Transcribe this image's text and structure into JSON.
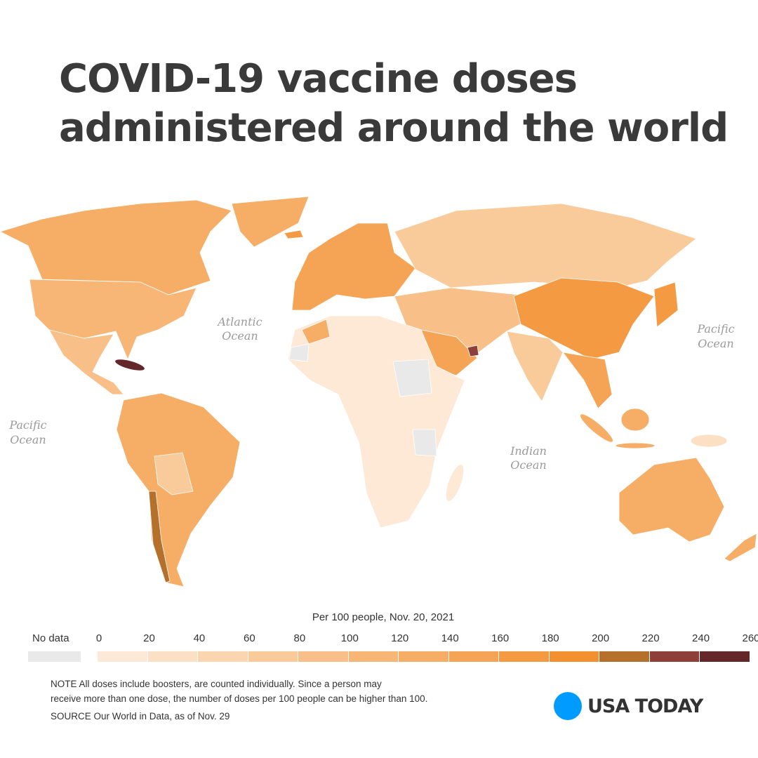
{
  "title": "COVID-19 vaccine doses administered around the world",
  "map": {
    "ocean_labels": [
      {
        "line1": "Atlantic",
        "line2": "Ocean"
      },
      {
        "line1": "Pacific",
        "line2": "Ocean"
      },
      {
        "line1": "Pacific",
        "line2": "Ocean"
      },
      {
        "line1": "Indian",
        "line2": "Ocean"
      }
    ]
  },
  "legend": {
    "title": "Per 100 people, Nov. 20, 2021",
    "no_data_label": "No data",
    "no_data_color": "#e9e9e9",
    "ticks": [
      "0",
      "20",
      "40",
      "60",
      "80",
      "100",
      "120",
      "140",
      "160",
      "180",
      "200",
      "220",
      "240",
      "260"
    ],
    "colors": [
      "#fde9d6",
      "#fce0c4",
      "#fbd5af",
      "#f9cb9b",
      "#f8c088",
      "#f7b676",
      "#f6ad66",
      "#f5a354",
      "#f49a43",
      "#f39131",
      "#b5702b",
      "#8f3f3a",
      "#65282a"
    ]
  },
  "note": {
    "line1": "NOTE All doses include boosters, are counted individually. Since a person may",
    "line2": "receive more than one dose, the number of doses per 100 people can be higher than 100.",
    "source": "SOURCE Our World in Data, as of Nov. 29"
  },
  "brand": {
    "name": "USA TODAY",
    "color": "#009bff"
  }
}
